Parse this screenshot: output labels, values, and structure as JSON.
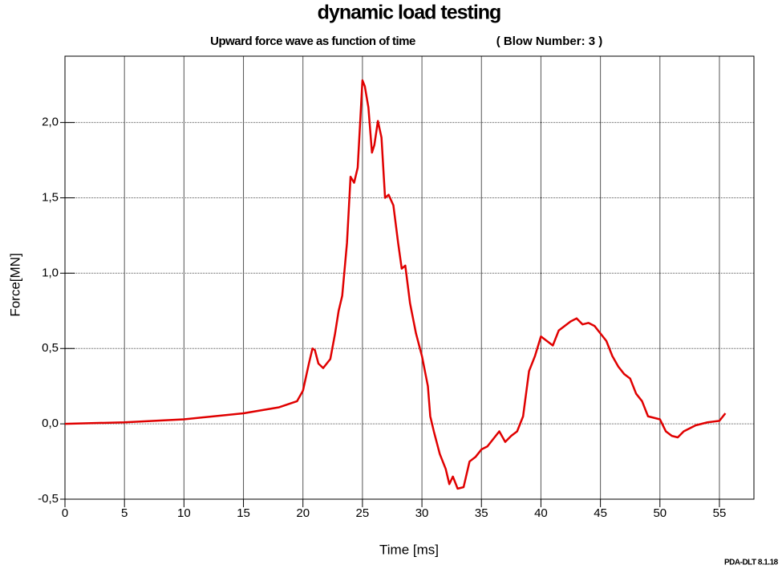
{
  "chart_data": {
    "type": "line",
    "title": "dynamic load testing",
    "subtitle": "Upward force wave as function of time",
    "annotation": "( Blow Number: 3 )",
    "footer": "PDA-DLT 8.1.18",
    "xlabel": "Time [ms]",
    "ylabel": "Force[MN]",
    "xlim": [
      0,
      57.9
    ],
    "ylim": [
      -0.5,
      2.44
    ],
    "xticks": [
      0,
      5,
      10,
      15,
      20,
      25,
      30,
      35,
      40,
      45,
      50,
      55
    ],
    "yticks": [
      {
        "value": -0.5,
        "label": "-0,5"
      },
      {
        "value": 0,
        "label": "0,0"
      },
      {
        "value": 0.5,
        "label": "0,5"
      },
      {
        "value": 1,
        "label": "1,0"
      },
      {
        "value": 1.5,
        "label": "1,5"
      },
      {
        "value": 2,
        "label": "2,0"
      }
    ],
    "grid": true,
    "series": [
      {
        "name": "Force",
        "color": "#e00000",
        "x": [
          0,
          5,
          10,
          15,
          18,
          19.5,
          20,
          20.5,
          20.8,
          21,
          21.3,
          21.7,
          22,
          22.3,
          22.7,
          23,
          23.3,
          23.7,
          24,
          24.3,
          24.6,
          25,
          25.2,
          25.5,
          25.8,
          26,
          26.3,
          26.6,
          26.9,
          27.2,
          27.6,
          28,
          28.3,
          28.6,
          29,
          29.5,
          30,
          30.5,
          30.7,
          31,
          31.5,
          32,
          32.3,
          32.6,
          33,
          33.5,
          34,
          34.5,
          35,
          35.5,
          36,
          36.5,
          37,
          37.5,
          38,
          38.5,
          39,
          39.5,
          40,
          40.5,
          41,
          41.5,
          42,
          42.5,
          43,
          43.5,
          44,
          44.5,
          45,
          45.5,
          46,
          46.5,
          47,
          47.5,
          48,
          48.5,
          49,
          49.5,
          50,
          50.5,
          51,
          51.5,
          52,
          52.5,
          53,
          54,
          55,
          55.5
        ],
        "values": [
          0,
          0.01,
          0.03,
          0.07,
          0.11,
          0.15,
          0.22,
          0.4,
          0.5,
          0.49,
          0.4,
          0.37,
          0.4,
          0.43,
          0.6,
          0.75,
          0.85,
          1.2,
          1.64,
          1.6,
          1.7,
          2.28,
          2.24,
          2.1,
          1.8,
          1.85,
          2.01,
          1.9,
          1.5,
          1.52,
          1.45,
          1.2,
          1.03,
          1.05,
          0.8,
          0.6,
          0.45,
          0.25,
          0.05,
          -0.05,
          -0.2,
          -0.3,
          -0.4,
          -0.35,
          -0.43,
          -0.42,
          -0.25,
          -0.22,
          -0.17,
          -0.15,
          -0.1,
          -0.05,
          -0.12,
          -0.08,
          -0.05,
          0.05,
          0.35,
          0.45,
          0.58,
          0.55,
          0.52,
          0.62,
          0.65,
          0.68,
          0.7,
          0.66,
          0.67,
          0.65,
          0.6,
          0.55,
          0.45,
          0.38,
          0.33,
          0.3,
          0.2,
          0.15,
          0.05,
          0.04,
          0.03,
          -0.05,
          -0.08,
          -0.09,
          -0.05,
          -0.03,
          -0.01,
          0.01,
          0.02,
          0.07
        ]
      }
    ]
  }
}
